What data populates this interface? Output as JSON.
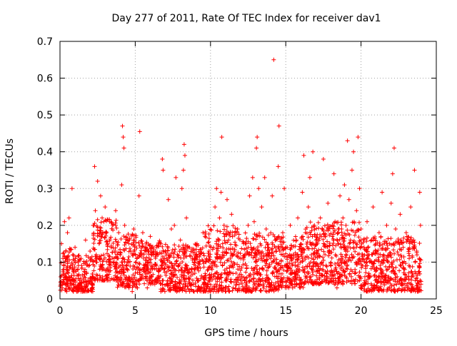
{
  "chart_data": {
    "type": "scatter",
    "title": "Day 277 of 2011, Rate Of TEC Index for receiver dav1",
    "xlabel": "GPS time / hours",
    "ylabel": "ROTI / TECUs",
    "xlim": [
      0,
      25
    ],
    "ylim": [
      0,
      0.7
    ],
    "xticks": [
      0,
      5,
      10,
      15,
      20,
      25
    ],
    "yticks": [
      0,
      0.1,
      0.2,
      0.3,
      0.4,
      0.5,
      0.6,
      0.7
    ],
    "xtick_labels": [
      "0",
      "5",
      "10",
      "15",
      "20",
      "25"
    ],
    "ytick_labels": [
      "0",
      "0.1",
      "0.2",
      "0.3",
      "0.4",
      "0.5",
      "0.6",
      "0.7"
    ],
    "grid": true,
    "marker": "plus",
    "color": "#ff0000",
    "legend": "none",
    "series": [
      {
        "points": [
          [
            0.05,
            0.06
          ],
          [
            0.1,
            0.15
          ],
          [
            0.15,
            0.03
          ],
          [
            0.2,
            0.11
          ],
          [
            0.25,
            0.08
          ],
          [
            0.3,
            0.21
          ],
          [
            0.35,
            0.04
          ],
          [
            0.4,
            0.13
          ],
          [
            0.45,
            0.02
          ],
          [
            0.5,
            0.18
          ],
          [
            0.55,
            0.07
          ],
          [
            0.6,
            0.22
          ],
          [
            0.65,
            0.05
          ],
          [
            0.7,
            0.09
          ],
          [
            0.8,
            0.3
          ],
          [
            0.85,
            0.12
          ],
          [
            0.9,
            0.04
          ],
          [
            1.0,
            0.14
          ],
          [
            1.1,
            0.03
          ],
          [
            1.2,
            0.08
          ],
          [
            1.3,
            0.05
          ],
          [
            1.4,
            0.11
          ],
          [
            1.5,
            0.02
          ],
          [
            1.6,
            0.06
          ],
          [
            1.7,
            0.16
          ],
          [
            1.8,
            0.04
          ],
          [
            1.9,
            0.09
          ],
          [
            2.0,
            0.13
          ],
          [
            2.1,
            0.05
          ],
          [
            2.2,
            0.2
          ],
          [
            2.3,
            0.36
          ],
          [
            2.35,
            0.24
          ],
          [
            2.4,
            0.1
          ],
          [
            2.5,
            0.32
          ],
          [
            2.6,
            0.15
          ],
          [
            2.7,
            0.28
          ],
          [
            2.8,
            0.22
          ],
          [
            2.9,
            0.12
          ],
          [
            3.0,
            0.25
          ],
          [
            3.1,
            0.18
          ],
          [
            3.2,
            0.08
          ],
          [
            3.3,
            0.21
          ],
          [
            3.4,
            0.14
          ],
          [
            3.5,
            0.2
          ],
          [
            3.6,
            0.1
          ],
          [
            3.7,
            0.24
          ],
          [
            3.8,
            0.06
          ],
          [
            3.9,
            0.18
          ],
          [
            4.0,
            0.12
          ],
          [
            4.1,
            0.31
          ],
          [
            4.15,
            0.47
          ],
          [
            4.2,
            0.44
          ],
          [
            4.25,
            0.41
          ],
          [
            4.3,
            0.2
          ],
          [
            4.4,
            0.09
          ],
          [
            4.5,
            0.16
          ],
          [
            4.6,
            0.05
          ],
          [
            4.7,
            0.13
          ],
          [
            4.8,
            0.02
          ],
          [
            4.9,
            0.19
          ],
          [
            5.0,
            0.07
          ],
          [
            5.1,
            0.11
          ],
          [
            5.2,
            0.05
          ],
          [
            5.25,
            0.28
          ],
          [
            5.3,
            0.455
          ],
          [
            5.4,
            0.12
          ],
          [
            5.5,
            0.18
          ],
          [
            5.6,
            0.08
          ],
          [
            5.7,
            0.14
          ],
          [
            5.8,
            0.03
          ],
          [
            5.9,
            0.1
          ],
          [
            6.0,
            0.17
          ],
          [
            6.1,
            0.06
          ],
          [
            6.2,
            0.13
          ],
          [
            6.3,
            0.04
          ],
          [
            6.4,
            0.09
          ],
          [
            6.5,
            0.12
          ],
          [
            6.6,
            0.05
          ],
          [
            6.7,
            0.15
          ],
          [
            6.8,
            0.38
          ],
          [
            6.85,
            0.35
          ],
          [
            6.9,
            0.08
          ],
          [
            7.0,
            0.13
          ],
          [
            7.1,
            0.04
          ],
          [
            7.2,
            0.27
          ],
          [
            7.3,
            0.1
          ],
          [
            7.4,
            0.19
          ],
          [
            7.5,
            0.06
          ],
          [
            7.6,
            0.2
          ],
          [
            7.7,
            0.33
          ],
          [
            7.8,
            0.12
          ],
          [
            7.9,
            0.03
          ],
          [
            8.0,
            0.16
          ],
          [
            8.1,
            0.3
          ],
          [
            8.2,
            0.35
          ],
          [
            8.25,
            0.42
          ],
          [
            8.3,
            0.39
          ],
          [
            8.4,
            0.22
          ],
          [
            8.5,
            0.07
          ],
          [
            8.6,
            0.14
          ],
          [
            8.7,
            0.04
          ],
          [
            8.8,
            0.11
          ],
          [
            8.9,
            0.02
          ],
          [
            9.0,
            0.09
          ],
          [
            9.1,
            0.15
          ],
          [
            9.2,
            0.05
          ],
          [
            9.3,
            0.12
          ],
          [
            9.4,
            0.03
          ],
          [
            9.5,
            0.18
          ],
          [
            9.6,
            0.06
          ],
          [
            9.7,
            0.1
          ],
          [
            9.8,
            0.04
          ],
          [
            9.9,
            0.13
          ],
          [
            10.0,
            0.02
          ],
          [
            10.1,
            0.08
          ],
          [
            10.2,
            0.14
          ],
          [
            10.3,
            0.25
          ],
          [
            10.4,
            0.3
          ],
          [
            10.5,
            0.06
          ],
          [
            10.6,
            0.22
          ],
          [
            10.7,
            0.29
          ],
          [
            10.75,
            0.44
          ],
          [
            10.8,
            0.12
          ],
          [
            10.9,
            0.2
          ],
          [
            11.0,
            0.05
          ],
          [
            11.1,
            0.27
          ],
          [
            11.2,
            0.16
          ],
          [
            11.3,
            0.09
          ],
          [
            11.4,
            0.23
          ],
          [
            11.5,
            0.03
          ],
          [
            11.6,
            0.13
          ],
          [
            11.7,
            0.07
          ],
          [
            11.8,
            0.19
          ],
          [
            11.9,
            0.04
          ],
          [
            12.0,
            0.11
          ],
          [
            12.1,
            0.06
          ],
          [
            12.2,
            0.15
          ],
          [
            12.3,
            0.03
          ],
          [
            12.4,
            0.09
          ],
          [
            12.5,
            0.2
          ],
          [
            12.6,
            0.28
          ],
          [
            12.7,
            0.14
          ],
          [
            12.8,
            0.33
          ],
          [
            12.9,
            0.21
          ],
          [
            13.0,
            0.1
          ],
          [
            13.05,
            0.41
          ],
          [
            13.1,
            0.44
          ],
          [
            13.2,
            0.3
          ],
          [
            13.3,
            0.15
          ],
          [
            13.4,
            0.25
          ],
          [
            13.5,
            0.08
          ],
          [
            13.6,
            0.33
          ],
          [
            13.7,
            0.19
          ],
          [
            13.8,
            0.12
          ],
          [
            13.9,
            0.04
          ],
          [
            14.0,
            0.11
          ],
          [
            14.1,
            0.28
          ],
          [
            14.2,
            0.65
          ],
          [
            14.3,
            0.16
          ],
          [
            14.4,
            0.06
          ],
          [
            14.5,
            0.36
          ],
          [
            14.55,
            0.47
          ],
          [
            14.6,
            0.13
          ],
          [
            14.7,
            0.05
          ],
          [
            14.8,
            0.18
          ],
          [
            14.9,
            0.3
          ],
          [
            15.0,
            0.09
          ],
          [
            15.1,
            0.14
          ],
          [
            15.2,
            0.03
          ],
          [
            15.3,
            0.2
          ],
          [
            15.4,
            0.07
          ],
          [
            15.5,
            0.12
          ],
          [
            15.6,
            0.04
          ],
          [
            15.7,
            0.16
          ],
          [
            15.8,
            0.22
          ],
          [
            15.9,
            0.08
          ],
          [
            16.0,
            0.13
          ],
          [
            16.1,
            0.29
          ],
          [
            16.2,
            0.39
          ],
          [
            16.3,
            0.18
          ],
          [
            16.4,
            0.06
          ],
          [
            16.5,
            0.25
          ],
          [
            16.6,
            0.33
          ],
          [
            16.7,
            0.12
          ],
          [
            16.8,
            0.4
          ],
          [
            16.9,
            0.2
          ],
          [
            17.0,
            0.09
          ],
          [
            17.1,
            0.15
          ],
          [
            17.2,
            0.04
          ],
          [
            17.3,
            0.22
          ],
          [
            17.4,
            0.1
          ],
          [
            17.5,
            0.38
          ],
          [
            17.6,
            0.17
          ],
          [
            17.7,
            0.07
          ],
          [
            17.8,
            0.26
          ],
          [
            17.9,
            0.13
          ],
          [
            18.0,
            0.05
          ],
          [
            18.1,
            0.2
          ],
          [
            18.2,
            0.34
          ],
          [
            18.3,
            0.12
          ],
          [
            18.4,
            0.03
          ],
          [
            18.5,
            0.18
          ],
          [
            18.6,
            0.28
          ],
          [
            18.7,
            0.11
          ],
          [
            18.8,
            0.22
          ],
          [
            18.9,
            0.31
          ],
          [
            19.0,
            0.2
          ],
          [
            19.1,
            0.43
          ],
          [
            19.2,
            0.27
          ],
          [
            19.3,
            0.16
          ],
          [
            19.4,
            0.35
          ],
          [
            19.5,
            0.4
          ],
          [
            19.6,
            0.08
          ],
          [
            19.7,
            0.24
          ],
          [
            19.8,
            0.44
          ],
          [
            19.9,
            0.3
          ],
          [
            20.0,
            0.19
          ],
          [
            20.1,
            0.09
          ],
          [
            20.2,
            0.14
          ],
          [
            20.3,
            0.04
          ],
          [
            20.4,
            0.21
          ],
          [
            20.5,
            0.11
          ],
          [
            20.6,
            0.06
          ],
          [
            20.7,
            0.16
          ],
          [
            20.8,
            0.25
          ],
          [
            20.9,
            0.08
          ],
          [
            21.0,
            0.13
          ],
          [
            21.1,
            0.03
          ],
          [
            21.2,
            0.18
          ],
          [
            21.3,
            0.07
          ],
          [
            21.4,
            0.29
          ],
          [
            21.5,
            0.12
          ],
          [
            21.6,
            0.05
          ],
          [
            21.7,
            0.2
          ],
          [
            21.8,
            0.1
          ],
          [
            21.9,
            0.15
          ],
          [
            22.0,
            0.26
          ],
          [
            22.1,
            0.34
          ],
          [
            22.2,
            0.41
          ],
          [
            22.3,
            0.19
          ],
          [
            22.4,
            0.06
          ],
          [
            22.5,
            0.12
          ],
          [
            22.6,
            0.23
          ],
          [
            22.7,
            0.04
          ],
          [
            22.8,
            0.14
          ],
          [
            22.9,
            0.08
          ],
          [
            23.0,
            0.18
          ],
          [
            23.1,
            0.03
          ],
          [
            23.2,
            0.11
          ],
          [
            23.3,
            0.25
          ],
          [
            23.4,
            0.07
          ],
          [
            23.5,
            0.16
          ],
          [
            23.55,
            0.35
          ],
          [
            23.6,
            0.05
          ],
          [
            23.7,
            0.13
          ],
          [
            23.8,
            0.02
          ],
          [
            23.85,
            0.09
          ],
          [
            23.9,
            0.29
          ],
          [
            23.95,
            0.2
          ]
        ]
      }
    ],
    "density_bands": [
      {
        "x_from": 0.0,
        "x_to": 0.9,
        "y_low": 0.02,
        "y_high": 0.14
      },
      {
        "x_from": 0.9,
        "x_to": 2.2,
        "y_low": 0.02,
        "y_high": 0.12
      },
      {
        "x_from": 2.2,
        "x_to": 3.8,
        "y_low": 0.05,
        "y_high": 0.22
      },
      {
        "x_from": 3.8,
        "x_to": 5.2,
        "y_low": 0.03,
        "y_high": 0.18
      },
      {
        "x_from": 5.2,
        "x_to": 6.7,
        "y_low": 0.04,
        "y_high": 0.16
      },
      {
        "x_from": 6.7,
        "x_to": 9.6,
        "y_low": 0.02,
        "y_high": 0.15
      },
      {
        "x_from": 9.6,
        "x_to": 11.8,
        "y_low": 0.02,
        "y_high": 0.2
      },
      {
        "x_from": 11.8,
        "x_to": 14.5,
        "y_low": 0.02,
        "y_high": 0.18
      },
      {
        "x_from": 14.5,
        "x_to": 16.3,
        "y_low": 0.03,
        "y_high": 0.17
      },
      {
        "x_from": 16.3,
        "x_to": 19.9,
        "y_low": 0.04,
        "y_high": 0.21
      },
      {
        "x_from": 19.9,
        "x_to": 24.0,
        "y_low": 0.02,
        "y_high": 0.17
      }
    ]
  }
}
